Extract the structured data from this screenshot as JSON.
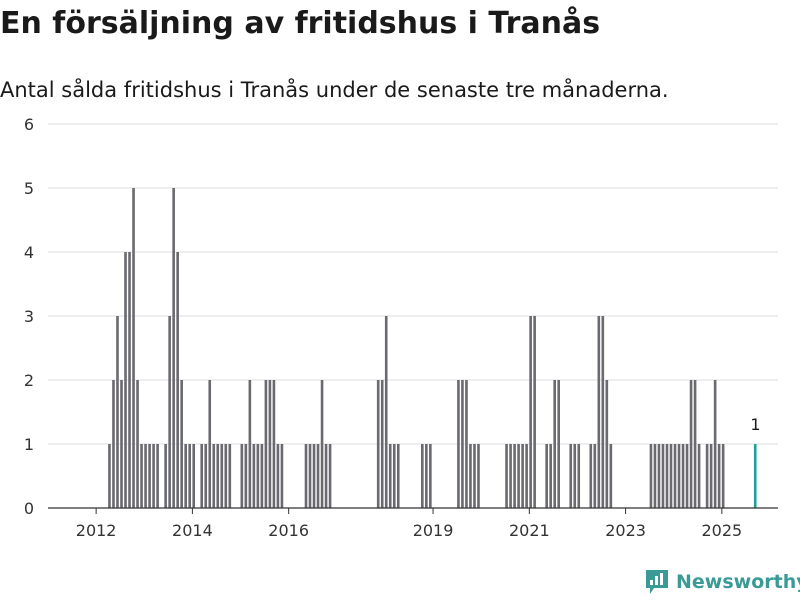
{
  "title": "En försäljning av fritidshus i Tranås",
  "subtitle": "Antal sålda fritidshus i Tranås under de senaste tre månaderna.",
  "brand": {
    "name": "Newsworthy",
    "icon": "newsworthy-logo-icon"
  },
  "colors": {
    "bar": "#6b6a70",
    "highlight": "#1aa19b",
    "grid": "#dcdcdc",
    "axis": "#333333",
    "brand": "#3a9a96"
  },
  "chart_data": {
    "type": "bar",
    "x_unit": "month",
    "xlim": [
      "2011-01",
      "2026-03"
    ],
    "ylim": [
      0,
      6
    ],
    "yticks": [
      0,
      1,
      2,
      3,
      4,
      5,
      6
    ],
    "xticks": [
      "2012",
      "2014",
      "2016",
      "2019",
      "2021",
      "2023",
      "2025"
    ],
    "grid": true,
    "highlight": {
      "month": "2025-09",
      "value": 1,
      "label": "1"
    },
    "series": [
      {
        "months": [
          "2012-04",
          "2012-05",
          "2012-06",
          "2012-07",
          "2012-08",
          "2012-09",
          "2012-10",
          "2012-11",
          "2012-12",
          "2013-01",
          "2013-02",
          "2013-03",
          "2013-04",
          "2013-06",
          "2013-07",
          "2013-08",
          "2013-09",
          "2013-10",
          "2013-11",
          "2013-12",
          "2014-01",
          "2014-03",
          "2014-04",
          "2014-05",
          "2014-06",
          "2014-07",
          "2014-08",
          "2014-09",
          "2014-10",
          "2015-01",
          "2015-02",
          "2015-03",
          "2015-04",
          "2015-05",
          "2015-06",
          "2015-07",
          "2015-08",
          "2015-09",
          "2015-10",
          "2015-11",
          "2016-05",
          "2016-06",
          "2016-07",
          "2016-08",
          "2016-09",
          "2016-10",
          "2016-11",
          "2017-11",
          "2017-12",
          "2018-01",
          "2018-02",
          "2018-03",
          "2018-04",
          "2018-10",
          "2018-11",
          "2018-12",
          "2019-07",
          "2019-08",
          "2019-09",
          "2019-10",
          "2019-11",
          "2019-12",
          "2020-07",
          "2020-08",
          "2020-09",
          "2020-10",
          "2020-11",
          "2020-12",
          "2021-01",
          "2021-02",
          "2021-05",
          "2021-06",
          "2021-07",
          "2021-08",
          "2021-11",
          "2021-12",
          "2022-01",
          "2022-04",
          "2022-05",
          "2022-06",
          "2022-07",
          "2022-08",
          "2022-09",
          "2023-07",
          "2023-08",
          "2023-09",
          "2023-10",
          "2023-11",
          "2023-12",
          "2024-01",
          "2024-02",
          "2024-03",
          "2024-04",
          "2024-05",
          "2024-06",
          "2024-07",
          "2024-09",
          "2024-10",
          "2024-11",
          "2024-12",
          "2025-01"
        ],
        "values": [
          1,
          2,
          3,
          2,
          4,
          4,
          5,
          2,
          1,
          1,
          1,
          1,
          1,
          1,
          3,
          5,
          4,
          2,
          1,
          1,
          1,
          1,
          1,
          2,
          1,
          1,
          1,
          1,
          1,
          1,
          1,
          2,
          1,
          1,
          1,
          2,
          2,
          2,
          1,
          1,
          1,
          1,
          1,
          1,
          2,
          1,
          1,
          2,
          2,
          3,
          1,
          1,
          1,
          1,
          1,
          1,
          2,
          2,
          2,
          1,
          1,
          1,
          1,
          1,
          1,
          1,
          1,
          1,
          3,
          3,
          1,
          1,
          2,
          2,
          1,
          1,
          1,
          1,
          1,
          3,
          3,
          2,
          1,
          1,
          1,
          1,
          1,
          1,
          1,
          1,
          1,
          1,
          1,
          2,
          2,
          1,
          1,
          1,
          2,
          1,
          1
        ]
      }
    ]
  }
}
